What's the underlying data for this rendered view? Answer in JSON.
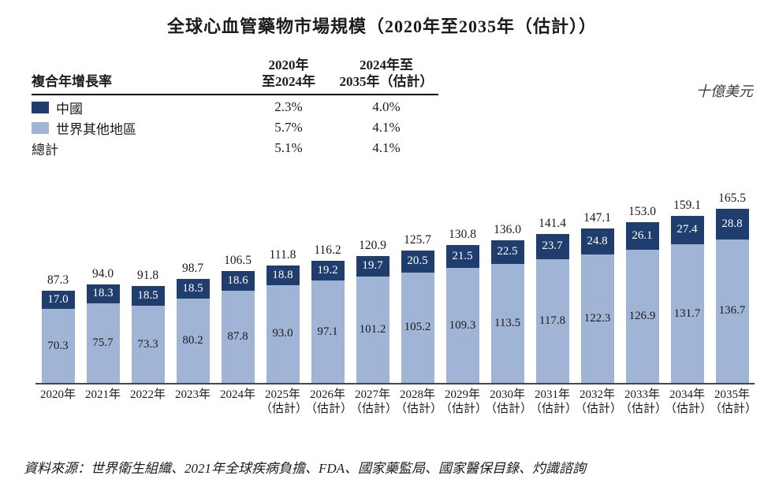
{
  "title": "全球心血管藥物市場規模（2020年至2035年（估計））",
  "unit_label": "十億美元",
  "colors": {
    "china_dark_blue": "#1F3E6E",
    "rest_of_world_light_blue": "#A0B4D6",
    "axis": "#474747"
  },
  "cagr_table": {
    "row_header": "複合年增長率",
    "col1_header_line1": "2020年",
    "col1_header_line2": "至2024年",
    "col2_header_line1": "2024年至",
    "col2_header_line2": "2035年（估計）",
    "rows": [
      {
        "label": "中國",
        "col1": "2.3%",
        "col2": "4.0%"
      },
      {
        "label": "世界其他地區",
        "col1": "5.7%",
        "col2": "4.1%"
      },
      {
        "label": "總計",
        "col1": "5.1%",
        "col2": "4.1%"
      }
    ]
  },
  "chart_data": {
    "type": "bar",
    "stacked": true,
    "title": "全球心血管藥物市場規模（2020年至2035年（估計））",
    "ylabel": "十億美元",
    "legend_position": "top-left-table",
    "grid": false,
    "categories": [
      "2020年",
      "2021年",
      "2022年",
      "2023年",
      "2024年",
      "2025年",
      "2026年",
      "2027年",
      "2028年",
      "2029年",
      "2030年",
      "2031年",
      "2032年",
      "2033年",
      "2034年",
      "2035年"
    ],
    "estimate_label": "（估計）",
    "estimated_from_index": 5,
    "series": [
      {
        "name": "中國",
        "values": [
          17.0,
          18.3,
          18.5,
          18.5,
          18.6,
          18.8,
          19.2,
          19.7,
          20.5,
          21.5,
          22.5,
          23.7,
          24.8,
          26.1,
          27.4,
          28.8
        ]
      },
      {
        "name": "世界其他地區",
        "values": [
          70.3,
          75.7,
          73.3,
          80.2,
          87.8,
          93.0,
          97.1,
          101.2,
          105.2,
          109.3,
          113.5,
          117.8,
          122.3,
          126.9,
          131.7,
          136.7
        ]
      }
    ],
    "totals": [
      87.3,
      94.0,
      91.8,
      98.7,
      106.5,
      111.8,
      116.2,
      120.9,
      125.7,
      130.8,
      136.0,
      141.4,
      147.1,
      153.0,
      159.1,
      165.5
    ],
    "ylim": [
      0,
      184
    ]
  },
  "source": "資料來源：世界衛生組織、2021年全球疾病負擔、FDA、國家藥監局、國家醫保目錄、灼識諮詢"
}
